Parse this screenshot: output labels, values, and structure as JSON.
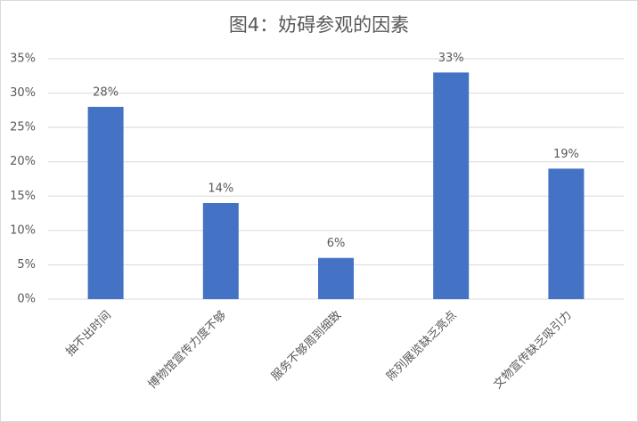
{
  "chart_data": {
    "type": "bar",
    "title": "图4：妨碍参观的因素",
    "categories": [
      "抽不出时间",
      "博物馆宣传力度不够",
      "服务不够周到细致",
      "陈列展览缺乏亮点",
      "文物宣传缺乏吸引力"
    ],
    "values": [
      28,
      14,
      6,
      33,
      19
    ],
    "value_labels": [
      "28%",
      "14%",
      "6%",
      "33%",
      "19%"
    ],
    "color": "#4472c4",
    "ylim": [
      0,
      35
    ],
    "yticks": [
      {
        "value": 0,
        "label": "0%"
      },
      {
        "value": 5,
        "label": "5%"
      },
      {
        "value": 10,
        "label": "10%"
      },
      {
        "value": 15,
        "label": "15%"
      },
      {
        "value": 20,
        "label": "20%"
      },
      {
        "value": 25,
        "label": "25%"
      },
      {
        "value": 30,
        "label": "30%"
      },
      {
        "value": 35,
        "label": "35%"
      }
    ],
    "grid": true
  }
}
